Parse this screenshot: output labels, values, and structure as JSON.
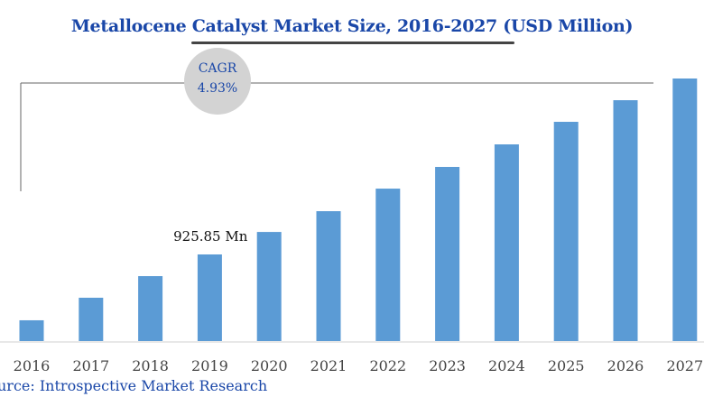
{
  "chart_data": {
    "type": "bar",
    "title": "Metallocene Catalyst Market Size, 2016-2027 (USD Million)",
    "categories": [
      "2016",
      "2017",
      "2018",
      "2019",
      "2020",
      "2021",
      "2022",
      "2023",
      "2024",
      "2025",
      "2026",
      "2027"
    ],
    "values": [
      222,
      463,
      694,
      925.85,
      1166,
      1388,
      1629,
      1861,
      2102,
      2343,
      2574,
      2806
    ],
    "data_labels": [
      {
        "category": "2019",
        "text": "925.85 Mn"
      }
    ],
    "annotation": {
      "line1": "CAGR",
      "line2": "4.93%"
    },
    "xlabel": "",
    "ylabel": "",
    "ylim": [
      0,
      2900
    ],
    "grid": false,
    "bar_color": "#5b9bd5",
    "source": "urce: Introspective Market Research"
  }
}
